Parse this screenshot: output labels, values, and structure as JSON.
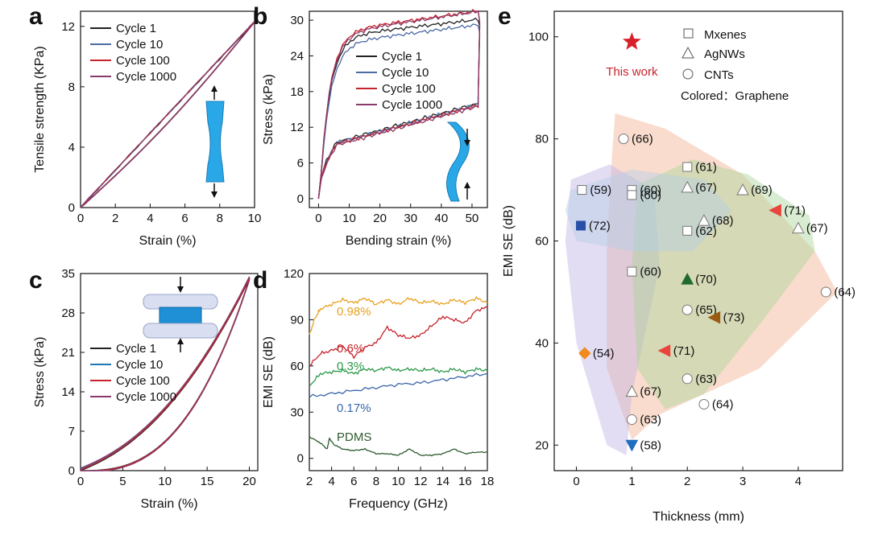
{
  "chart_data": [
    {
      "panel": "a",
      "type": "line",
      "xlabel": "Strain (%)",
      "ylabel": "Tensile strength (KPa)",
      "xlim": [
        0,
        10
      ],
      "ylim": [
        0,
        13
      ],
      "xticks": [
        0,
        2,
        4,
        6,
        8,
        10
      ],
      "yticks": [
        0,
        4,
        8,
        12
      ],
      "loop": {
        "xmax": 10,
        "ymax": 12.3,
        "gap": 0.55
      },
      "series": [
        {
          "name": "Cycle 1",
          "color": "#222222",
          "shift": 0.0
        },
        {
          "name": "Cycle 10",
          "color": "#4a6aa5",
          "shift": 0.15
        },
        {
          "name": "Cycle 100",
          "color": "#c8232c",
          "shift": 0.25
        },
        {
          "name": "Cycle 1000",
          "color": "#8a3a6a",
          "shift": 0.35
        }
      ]
    },
    {
      "panel": "b",
      "type": "line",
      "xlabel": "Bending strain (%)",
      "ylabel": "Stress (kPa)",
      "xlim": [
        -3,
        55
      ],
      "ylim": [
        -1.5,
        31.5
      ],
      "xticks": [
        0,
        10,
        20,
        30,
        40,
        50
      ],
      "yticks": [
        0,
        6,
        12,
        18,
        24,
        30
      ],
      "loop": {
        "xmax": 52,
        "upper_end": 30,
        "lower_start": 9.5,
        "lower_end": 16
      },
      "series": [
        {
          "name": "Cycle 1",
          "color": "#222222",
          "offset": 0.0
        },
        {
          "name": "Cycle 10",
          "color": "#4a6aa5",
          "offset": -1.2
        },
        {
          "name": "Cycle 100",
          "color": "#c8232c",
          "offset": 0.8
        },
        {
          "name": "Cycle 1000",
          "color": "#8a3a6a",
          "offset": 0.4
        }
      ]
    },
    {
      "panel": "c",
      "type": "line",
      "xlabel": "Strain (%)",
      "ylabel": "Stress (kPa)",
      "xlim": [
        0,
        21
      ],
      "ylim": [
        0,
        35
      ],
      "xticks": [
        0,
        5,
        10,
        15,
        20
      ],
      "yticks": [
        0,
        7,
        14,
        21,
        28,
        35
      ],
      "loop": {
        "xmax": 20,
        "ymax": 34
      },
      "series": [
        {
          "name": "Cycle 1",
          "color": "#222222",
          "shift": 0.0
        },
        {
          "name": "Cycle 10",
          "color": "#1f77b4",
          "shift": 0.3
        },
        {
          "name": "Cycle 100",
          "color": "#c8232c",
          "shift": 0.15
        },
        {
          "name": "Cycle 1000",
          "color": "#8a3a6a",
          "shift": 0.45
        }
      ]
    },
    {
      "panel": "d",
      "type": "line",
      "xlabel": "Frequency (GHz)",
      "ylabel": "EMI SE (dB)",
      "xlim": [
        2,
        18
      ],
      "ylim": [
        -8,
        120
      ],
      "xticks": [
        2,
        4,
        6,
        8,
        10,
        12,
        14,
        16,
        18
      ],
      "yticks": [
        0,
        30,
        60,
        90,
        120
      ],
      "series": [
        {
          "name": "0.98%",
          "color": "#e8a020",
          "values": [
            [
              2,
              80
            ],
            [
              2.5,
              91
            ],
            [
              3,
              97
            ],
            [
              4,
              100
            ],
            [
              5,
              103
            ],
            [
              6,
              101
            ],
            [
              7,
              104
            ],
            [
              8,
              100
            ],
            [
              9,
              103
            ],
            [
              10,
              100
            ],
            [
              11,
              104
            ],
            [
              12,
              101
            ],
            [
              13,
              102
            ],
            [
              14,
              100
            ],
            [
              15,
              103
            ],
            [
              16,
              101
            ],
            [
              17,
              104
            ],
            [
              18,
              101
            ]
          ]
        },
        {
          "name": "0.6%",
          "color": "#c8232c",
          "values": [
            [
              2,
              60
            ],
            [
              3,
              68
            ],
            [
              4,
              70
            ],
            [
              5,
              73
            ],
            [
              6,
              66
            ],
            [
              7,
              72
            ],
            [
              8,
              75
            ],
            [
              9,
              85
            ],
            [
              10,
              80
            ],
            [
              11,
              78
            ],
            [
              12,
              80
            ],
            [
              13,
              86
            ],
            [
              14,
              92
            ],
            [
              15,
              90
            ],
            [
              16,
              88
            ],
            [
              17,
              96
            ],
            [
              18,
              98
            ]
          ]
        },
        {
          "name": "0.3%",
          "color": "#2a9a48",
          "values": [
            [
              2,
              47
            ],
            [
              3,
              55
            ],
            [
              4,
              56
            ],
            [
              5,
              57
            ],
            [
              6,
              55
            ],
            [
              7,
              58
            ],
            [
              8,
              57
            ],
            [
              9,
              59
            ],
            [
              10,
              57
            ],
            [
              11,
              58
            ],
            [
              12,
              57
            ],
            [
              13,
              58
            ],
            [
              14,
              56
            ],
            [
              15,
              58
            ],
            [
              16,
              56
            ],
            [
              17,
              58
            ],
            [
              18,
              57
            ]
          ]
        },
        {
          "name": "0.17%",
          "color": "#3a66aa",
          "values": [
            [
              2,
              40
            ],
            [
              4,
              42
            ],
            [
              6,
              44
            ],
            [
              8,
              46
            ],
            [
              10,
              48
            ],
            [
              12,
              49
            ],
            [
              14,
              51
            ],
            [
              16,
              53
            ],
            [
              18,
              55
            ]
          ]
        },
        {
          "name": "PDMS",
          "color": "#2e5a2e",
          "values": [
            [
              2,
              14
            ],
            [
              3,
              10
            ],
            [
              3.6,
              6
            ],
            [
              3.8,
              13
            ],
            [
              4.2,
              9
            ],
            [
              5,
              6
            ],
            [
              6,
              5
            ],
            [
              7,
              6
            ],
            [
              8,
              3
            ],
            [
              9,
              3
            ],
            [
              10,
              2
            ],
            [
              11,
              6
            ],
            [
              12,
              2
            ],
            [
              13,
              2
            ],
            [
              14,
              3
            ],
            [
              15,
              6
            ],
            [
              16,
              3
            ],
            [
              17,
              4
            ],
            [
              18,
              4
            ]
          ]
        }
      ],
      "labels_text": [
        "0.98%",
        "0.6%",
        "0.3%",
        "0.17%",
        "PDMS"
      ]
    },
    {
      "panel": "e",
      "type": "scatter",
      "xlabel": "Thickness (mm)",
      "ylabel": "EMI SE (dB)",
      "xlim": [
        -0.4,
        4.8
      ],
      "ylim": [
        15,
        105
      ],
      "xticks": [
        0,
        1,
        2,
        3,
        4
      ],
      "yticks": [
        20,
        40,
        60,
        80,
        100
      ],
      "legend": {
        "mxenes": "Mxenes",
        "agnws": "AgNWs",
        "cnts": "CNTs",
        "graphene": "Colored：Graphene"
      },
      "this_work": {
        "label": "This work",
        "x": 1.0,
        "y": 99
      },
      "points": [
        {
          "x": 0.1,
          "y": 70,
          "shape": "square",
          "color": "none",
          "ref": "(59)"
        },
        {
          "x": 1.0,
          "y": 70,
          "shape": "square",
          "color": "none",
          "ref": "(60)"
        },
        {
          "x": 1.0,
          "y": 69,
          "shape": "square",
          "color": "none",
          "ref": "(60)"
        },
        {
          "x": 2.0,
          "y": 74.5,
          "shape": "square",
          "color": "none",
          "ref": "(61)"
        },
        {
          "x": 2.0,
          "y": 62,
          "shape": "square",
          "color": "none",
          "ref": "(62)"
        },
        {
          "x": 1.0,
          "y": 54,
          "shape": "square",
          "color": "none",
          "ref": "(60)"
        },
        {
          "x": 2.0,
          "y": 70.5,
          "shape": "triangle-up",
          "color": "none",
          "ref": "(67)"
        },
        {
          "x": 3.0,
          "y": 70,
          "shape": "triangle-up",
          "color": "none",
          "ref": "(69)"
        },
        {
          "x": 2.3,
          "y": 64,
          "shape": "triangle-up",
          "color": "none",
          "ref": "(68)"
        },
        {
          "x": 4.0,
          "y": 62.5,
          "shape": "triangle-up",
          "color": "none",
          "ref": "(67)"
        },
        {
          "x": 1.0,
          "y": 30.5,
          "shape": "triangle-up",
          "color": "none",
          "ref": "(67)"
        },
        {
          "x": 0.85,
          "y": 80,
          "shape": "circle",
          "color": "none",
          "ref": "(66)"
        },
        {
          "x": 2.0,
          "y": 46.5,
          "shape": "circle",
          "color": "none",
          "ref": "(65)"
        },
        {
          "x": 4.5,
          "y": 50,
          "shape": "circle",
          "color": "none",
          "ref": "(64)"
        },
        {
          "x": 2.0,
          "y": 33,
          "shape": "circle",
          "color": "none",
          "ref": "(63)"
        },
        {
          "x": 2.3,
          "y": 28,
          "shape": "circle",
          "color": "none",
          "ref": "(64)"
        },
        {
          "x": 1.0,
          "y": 25,
          "shape": "circle",
          "color": "none",
          "ref": "(63)"
        },
        {
          "x": 0.08,
          "y": 63,
          "shape": "square",
          "color": "#2a4fa8",
          "ref": "(72)"
        },
        {
          "x": 3.6,
          "y": 66,
          "shape": "triangle-left",
          "color": "#e8453c",
          "ref": "(71)"
        },
        {
          "x": 2.0,
          "y": 52.5,
          "shape": "triangle-up",
          "color": "#1f6b2e",
          "ref": "(70)"
        },
        {
          "x": 2.5,
          "y": 45,
          "shape": "triangle-left",
          "color": "#9a5b12",
          "ref": "(73)"
        },
        {
          "x": 0.15,
          "y": 38,
          "shape": "diamond",
          "color": "#f08a1c",
          "ref": "(54)"
        },
        {
          "x": 1.6,
          "y": 38.5,
          "shape": "triangle-left",
          "color": "#e8453c",
          "ref": "(71)"
        },
        {
          "x": 1.0,
          "y": 20,
          "shape": "triangle-down",
          "color": "#1f6fc0",
          "ref": "(58)"
        }
      ]
    }
  ]
}
